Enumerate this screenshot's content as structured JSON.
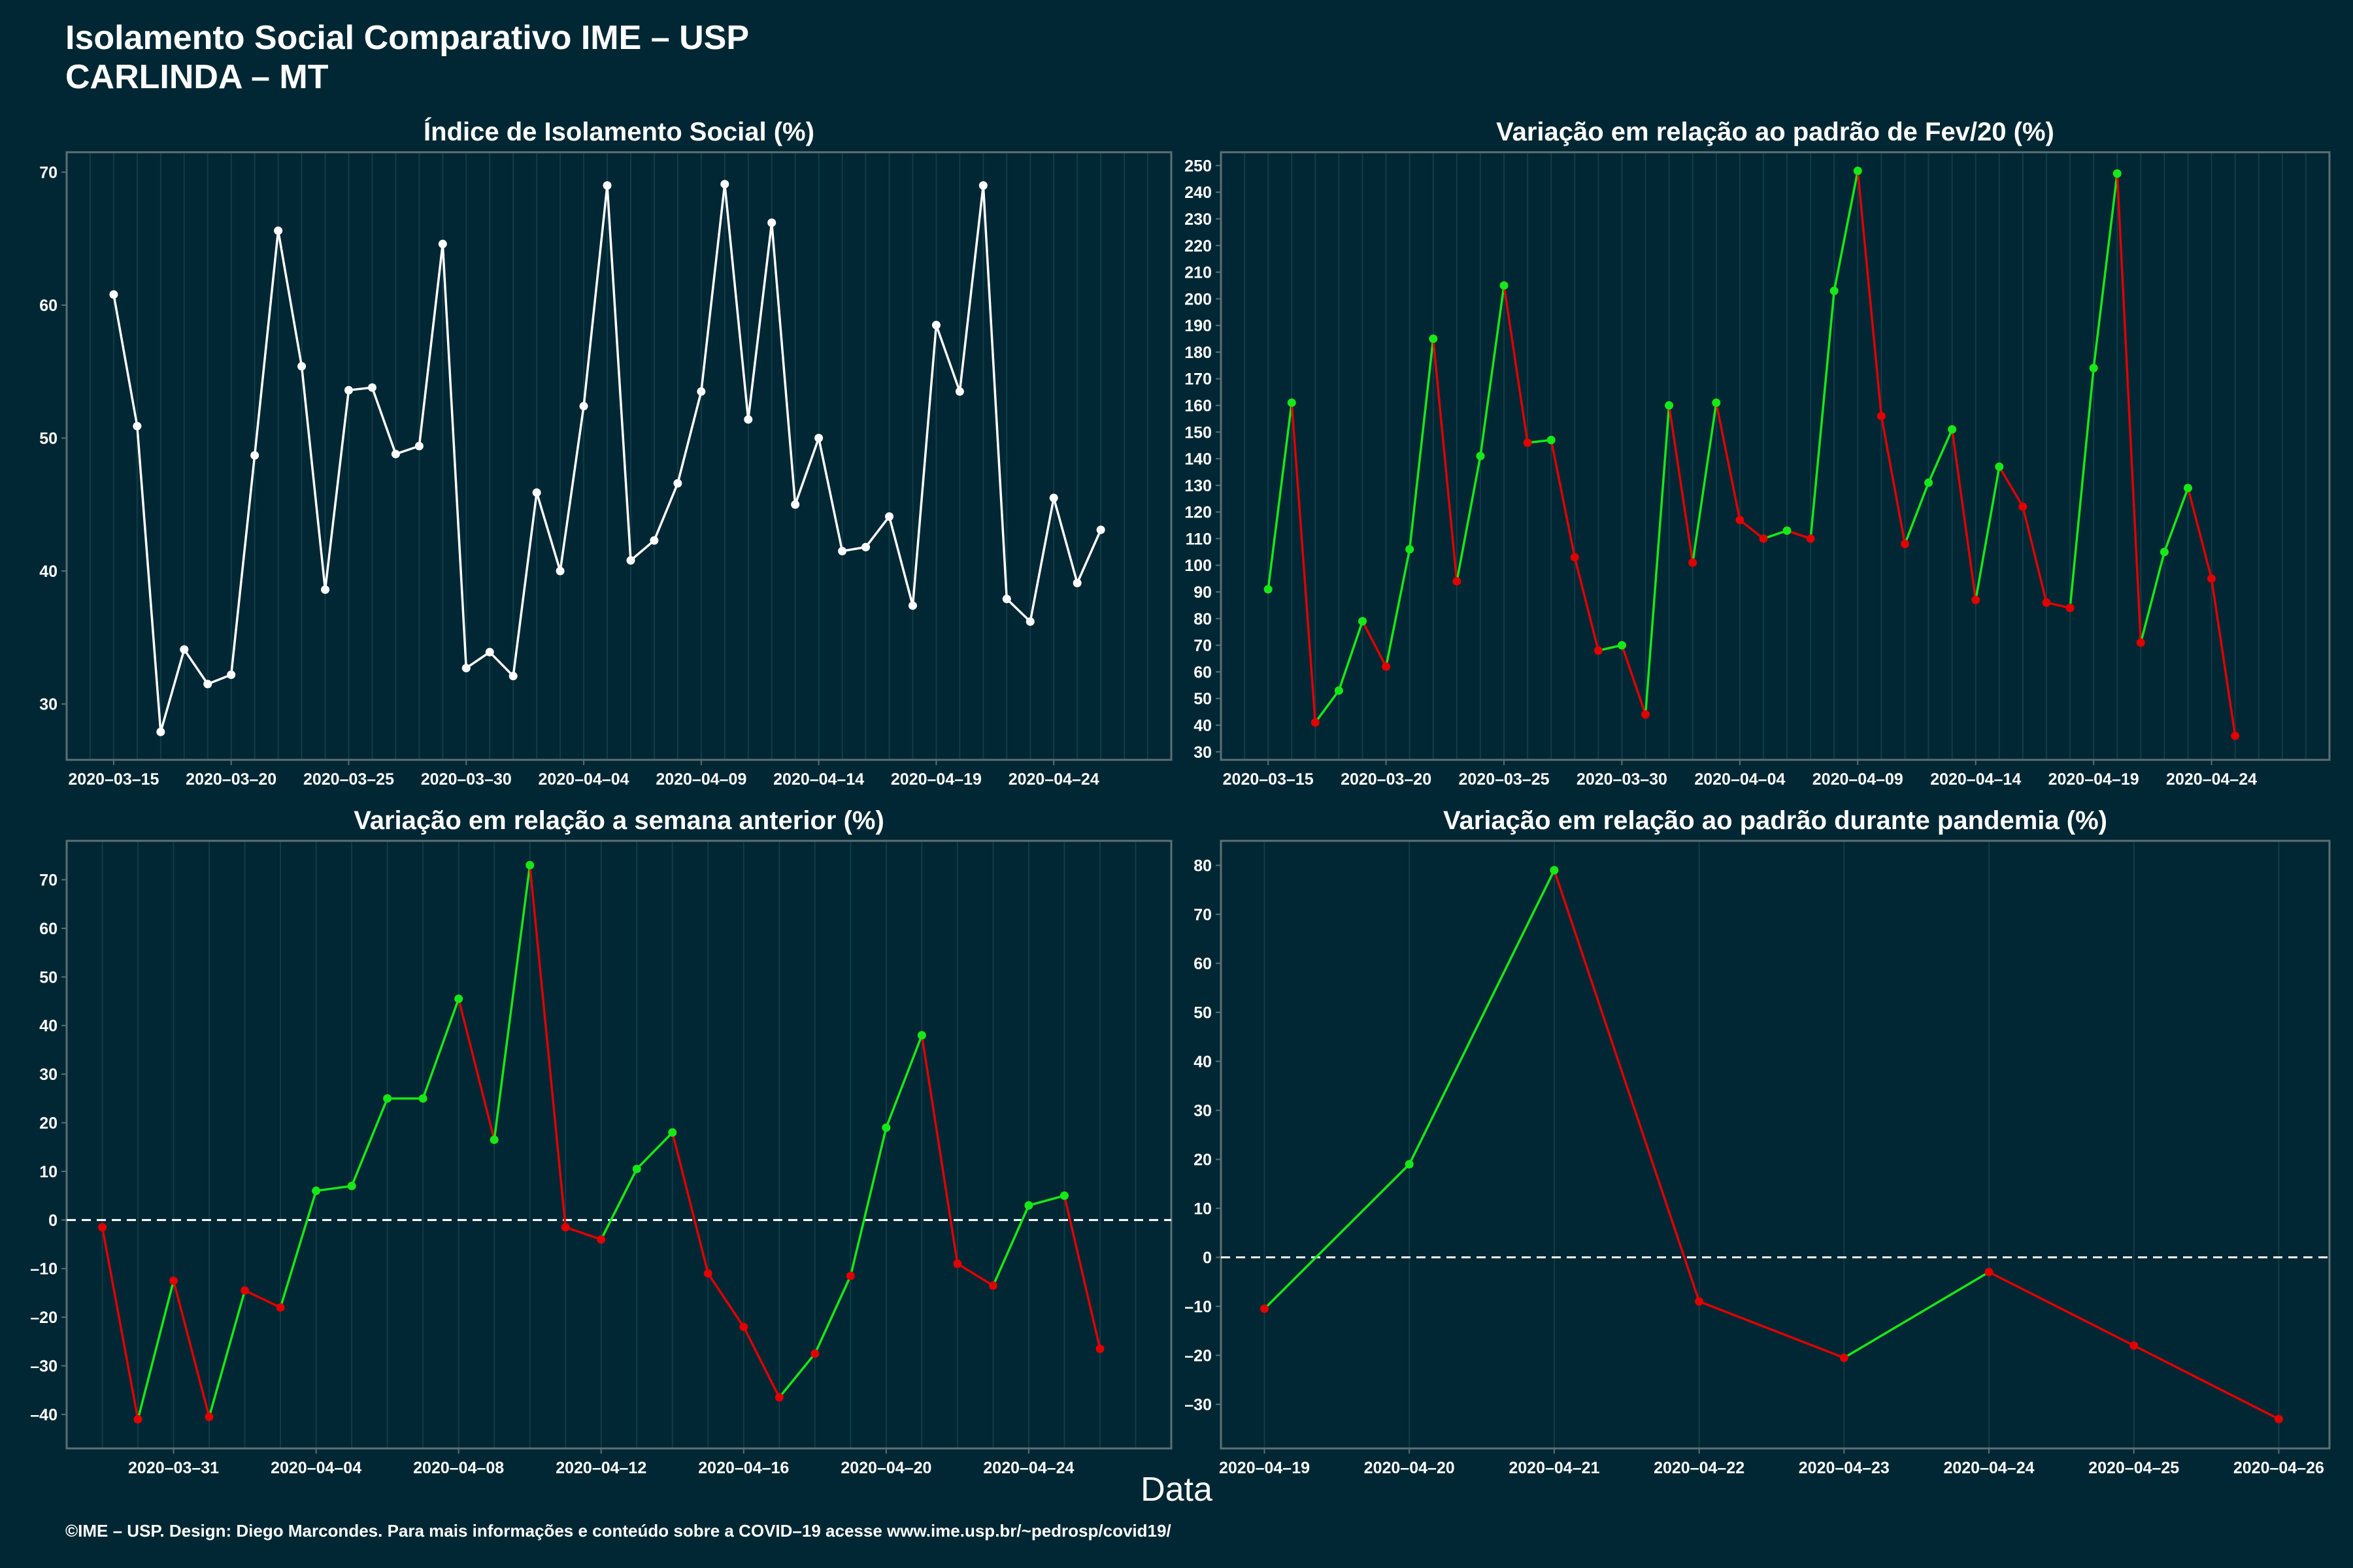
{
  "header": {
    "title_line1": "Isolamento Social Comparativo IME – USP",
    "title_line2": "CARLINDA – MT"
  },
  "x_axis_title": "Data",
  "footer": "©IME – USP. Design: Diego Marcondes. Para mais informações e conteúdo sobre a COVID–19 acesse www.ime.usp.br/~pedrosp/covid19/",
  "colors": {
    "background": "#002733",
    "panel_border": "#5d6f75",
    "gridline": "#123c47",
    "white_line": "#ffffff",
    "positive": "#17e817",
    "negative": "#e00000",
    "zero_line": "#ffffff"
  },
  "chart_data": [
    {
      "type": "line",
      "title": "Índice de Isolamento Social (%)",
      "x_start": "2020-03-15",
      "x_end": "2020-04-27",
      "xlim": [
        "2020-03-13",
        "2020-04-29"
      ],
      "x_ticks": [
        "2020-03-15",
        "2020-03-20",
        "2020-03-25",
        "2020-03-30",
        "2020-04-04",
        "2020-04-09",
        "2020-04-14",
        "2020-04-19",
        "2020-04-24"
      ],
      "ylim": [
        25.8,
        71.5
      ],
      "y_ticks": [
        30,
        40,
        50,
        60,
        70
      ],
      "coloring": "white",
      "values": [
        60.8,
        50.9,
        27.9,
        34.1,
        31.5,
        32.2,
        48.7,
        65.6,
        55.4,
        38.6,
        53.6,
        53.8,
        48.8,
        49.4,
        64.6,
        32.7,
        33.9,
        32.1,
        45.9,
        40.0,
        52.4,
        69.0,
        40.8,
        42.3,
        46.6,
        53.5,
        69.1,
        51.4,
        66.2,
        45.0,
        50.0,
        41.5,
        41.8,
        44.1,
        37.4,
        58.5,
        53.5,
        69.0,
        37.9,
        36.2,
        45.5,
        39.1,
        43.1
      ]
    },
    {
      "type": "line",
      "title": "Variação em relação ao padrão de Fev/20 (%)",
      "x_start": "2020-03-15",
      "x_end": "2020-04-27",
      "xlim": [
        "2020-03-13",
        "2020-04-29"
      ],
      "x_ticks": [
        "2020-03-15",
        "2020-03-20",
        "2020-03-25",
        "2020-03-30",
        "2020-04-04",
        "2020-04-09",
        "2020-04-14",
        "2020-04-19",
        "2020-04-24"
      ],
      "ylim": [
        27,
        255
      ],
      "y_ticks": [
        30,
        40,
        50,
        60,
        70,
        80,
        90,
        100,
        110,
        120,
        130,
        140,
        150,
        160,
        170,
        180,
        190,
        200,
        210,
        220,
        230,
        240,
        250
      ],
      "coloring": "up-down",
      "values": [
        91,
        161,
        41,
        53,
        79,
        62,
        106,
        185,
        94,
        141,
        205,
        146,
        147,
        103,
        68,
        70,
        44,
        160,
        101,
        161,
        117,
        110,
        113,
        110,
        203,
        248,
        156,
        108,
        131,
        151,
        87,
        137,
        122,
        86,
        84,
        174,
        247,
        71,
        105,
        129,
        95,
        36
      ]
    },
    {
      "type": "line",
      "title": "Variação em relação a semana anterior (%)",
      "x_start": "2020-03-29",
      "x_end": "2020-04-27",
      "xlim": [
        "2020-03-28",
        "2020-04-28"
      ],
      "x_ticks": [
        "2020-03-31",
        "2020-04-04",
        "2020-04-08",
        "2020-04-12",
        "2020-04-16",
        "2020-04-20",
        "2020-04-24"
      ],
      "ylim": [
        -47,
        78
      ],
      "y_ticks": [
        -40,
        -30,
        -20,
        -10,
        0,
        10,
        20,
        30,
        40,
        50,
        60,
        70
      ],
      "coloring": "sign",
      "zero_line": true,
      "values": [
        -1.5,
        -41.0,
        -12.5,
        -40.5,
        -14.5,
        -18.0,
        6.0,
        7.0,
        25.0,
        25.0,
        45.5,
        16.5,
        73.0,
        -1.5,
        -4.0,
        10.5,
        18.0,
        -11.0,
        -22.0,
        -36.5,
        -27.5,
        -11.5,
        19.0,
        38.0,
        -9.0,
        -13.5,
        3.0,
        5.0,
        -26.5
      ]
    },
    {
      "type": "line",
      "title": "Variação em relação ao padrão durante pandemia (%)",
      "x_start": "2020-04-19",
      "x_end": "2020-04-26",
      "xlim": [
        "2020-04-18.7",
        "2020-04-26.35"
      ],
      "x_ticks": [
        "2020-04-19",
        "2020-04-20",
        "2020-04-21",
        "2020-04-22",
        "2020-04-23",
        "2020-04-24",
        "2020-04-25",
        "2020-04-26"
      ],
      "ylim": [
        -39,
        85
      ],
      "y_ticks": [
        -30,
        -20,
        -10,
        0,
        10,
        20,
        30,
        40,
        50,
        60,
        70,
        80
      ],
      "coloring": "sign",
      "zero_line": true,
      "values": [
        -10.5,
        19.0,
        79.0,
        -9.0,
        -20.5,
        -3.0,
        -18.0,
        -33.0
      ]
    }
  ]
}
